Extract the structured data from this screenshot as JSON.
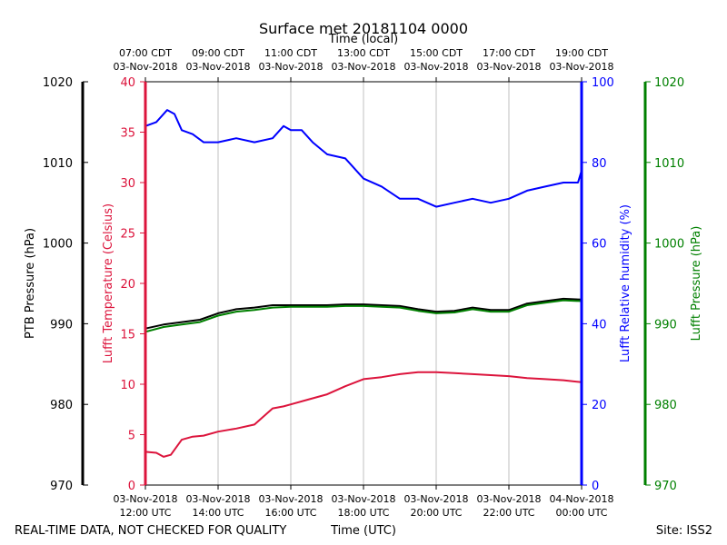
{
  "chart_data": {
    "type": "line",
    "title": "Surface met 20181104 0000",
    "top_axis_label": "Time (local)",
    "xlabel": "Time (UTC)",
    "footer_left": "REAL-TIME DATA, NOT CHECKED FOR QUALITY",
    "footer_right": "Site: ISS2",
    "x_range": [
      12,
      24
    ],
    "top_ticks": [
      {
        "x": 12,
        "line1": "07:00 CDT",
        "line2": "03-Nov-2018"
      },
      {
        "x": 14,
        "line1": "09:00 CDT",
        "line2": "03-Nov-2018"
      },
      {
        "x": 16,
        "line1": "11:00 CDT",
        "line2": "03-Nov-2018"
      },
      {
        "x": 18,
        "line1": "13:00 CDT",
        "line2": "03-Nov-2018"
      },
      {
        "x": 20,
        "line1": "15:00 CDT",
        "line2": "03-Nov-2018"
      },
      {
        "x": 22,
        "line1": "17:00 CDT",
        "line2": "03-Nov-2018"
      },
      {
        "x": 24,
        "line1": "19:00 CDT",
        "line2": "03-Nov-2018"
      }
    ],
    "bottom_ticks": [
      {
        "x": 12,
        "line1": "03-Nov-2018",
        "line2": "12:00 UTC"
      },
      {
        "x": 14,
        "line1": "03-Nov-2018",
        "line2": "14:00 UTC"
      },
      {
        "x": 16,
        "line1": "03-Nov-2018",
        "line2": "16:00 UTC"
      },
      {
        "x": 18,
        "line1": "03-Nov-2018",
        "line2": "18:00 UTC"
      },
      {
        "x": 20,
        "line1": "03-Nov-2018",
        "line2": "20:00 UTC"
      },
      {
        "x": 22,
        "line1": "03-Nov-2018",
        "line2": "22:00 UTC"
      },
      {
        "x": 24,
        "line1": "04-Nov-2018",
        "line2": "00:00 UTC"
      }
    ],
    "grid_vertical": true,
    "axes": [
      {
        "id": "ptb",
        "label": "PTB Pressure (hPa)",
        "side": "far-left",
        "color": "#000000",
        "range": [
          970,
          1020
        ],
        "ticks": [
          970,
          980,
          990,
          1000,
          1010,
          1020
        ]
      },
      {
        "id": "temp",
        "label": "Lufft Temperature (Celsius)",
        "side": "left",
        "color": "#dc143c",
        "range": [
          0,
          40
        ],
        "ticks": [
          0,
          5,
          10,
          15,
          20,
          25,
          30,
          35,
          40
        ]
      },
      {
        "id": "rh",
        "label": "Lufft Relative humidity (%)",
        "side": "right",
        "color": "#0000ff",
        "range": [
          0,
          100
        ],
        "ticks": [
          0,
          20,
          40,
          60,
          80,
          100
        ]
      },
      {
        "id": "lp",
        "label": "Lufft Pressure (hPa)",
        "side": "far-right",
        "color": "#008000",
        "range": [
          970,
          1020
        ],
        "ticks": [
          970,
          980,
          990,
          1000,
          1010,
          1020
        ]
      }
    ],
    "series": [
      {
        "name": "PTB Pressure",
        "axis": "ptb",
        "color": "#000000",
        "x": [
          12.0,
          12.5,
          13.0,
          13.5,
          14.0,
          14.5,
          15.0,
          15.5,
          16.0,
          16.5,
          17.0,
          17.5,
          18.0,
          18.5,
          19.0,
          19.5,
          20.0,
          20.5,
          21.0,
          21.5,
          22.0,
          22.5,
          23.0,
          23.5,
          24.0
        ],
        "values": [
          989.4,
          989.9,
          990.2,
          990.5,
          991.3,
          991.8,
          992.0,
          992.3,
          992.3,
          992.3,
          992.3,
          992.4,
          992.4,
          992.3,
          992.2,
          991.8,
          991.5,
          991.6,
          992.0,
          991.7,
          991.7,
          992.5,
          992.8,
          993.1,
          993.0
        ]
      },
      {
        "name": "Lufft Pressure",
        "axis": "lp",
        "color": "#008000",
        "x": [
          12.0,
          12.5,
          13.0,
          13.5,
          14.0,
          14.5,
          15.0,
          15.5,
          16.0,
          16.5,
          17.0,
          17.5,
          18.0,
          18.5,
          19.0,
          19.5,
          20.0,
          20.5,
          21.0,
          21.5,
          22.0,
          22.5,
          23.0,
          23.5,
          24.0
        ],
        "values": [
          989.0,
          989.6,
          989.9,
          990.2,
          991.0,
          991.5,
          991.7,
          992.0,
          992.1,
          992.1,
          992.1,
          992.2,
          992.2,
          992.1,
          992.0,
          991.6,
          991.3,
          991.4,
          991.8,
          991.5,
          991.5,
          992.3,
          992.6,
          992.9,
          992.8
        ]
      },
      {
        "name": "Lufft Temperature",
        "axis": "temp",
        "color": "#dc143c",
        "x": [
          12.0,
          12.3,
          12.5,
          12.7,
          13.0,
          13.3,
          13.6,
          14.0,
          14.5,
          15.0,
          15.5,
          15.8,
          16.0,
          16.5,
          17.0,
          17.5,
          18.0,
          18.5,
          19.0,
          19.5,
          20.0,
          20.5,
          21.0,
          21.5,
          22.0,
          22.5,
          23.0,
          23.5,
          24.0
        ],
        "values": [
          3.3,
          3.2,
          2.8,
          3.0,
          4.5,
          4.8,
          4.9,
          5.3,
          5.6,
          6.0,
          7.6,
          7.8,
          8.0,
          8.5,
          9.0,
          9.8,
          10.5,
          10.7,
          11.0,
          11.2,
          11.2,
          11.1,
          11.0,
          10.9,
          10.8,
          10.6,
          10.5,
          10.4,
          10.2
        ]
      },
      {
        "name": "Lufft Relative humidity",
        "axis": "rh",
        "color": "#0000ff",
        "x": [
          12.0,
          12.3,
          12.6,
          12.8,
          13.0,
          13.3,
          13.6,
          14.0,
          14.5,
          15.0,
          15.5,
          15.8,
          16.0,
          16.3,
          16.6,
          17.0,
          17.5,
          18.0,
          18.5,
          19.0,
          19.5,
          20.0,
          20.5,
          21.0,
          21.5,
          22.0,
          22.5,
          23.0,
          23.5,
          23.9,
          24.0
        ],
        "values": [
          89,
          90,
          93,
          92,
          88,
          87,
          85,
          85,
          86,
          85,
          86,
          89,
          88,
          88,
          85,
          82,
          81,
          76,
          74,
          71,
          71,
          69,
          70,
          71,
          70,
          71,
          73,
          74,
          75,
          75,
          78
        ]
      }
    ]
  }
}
